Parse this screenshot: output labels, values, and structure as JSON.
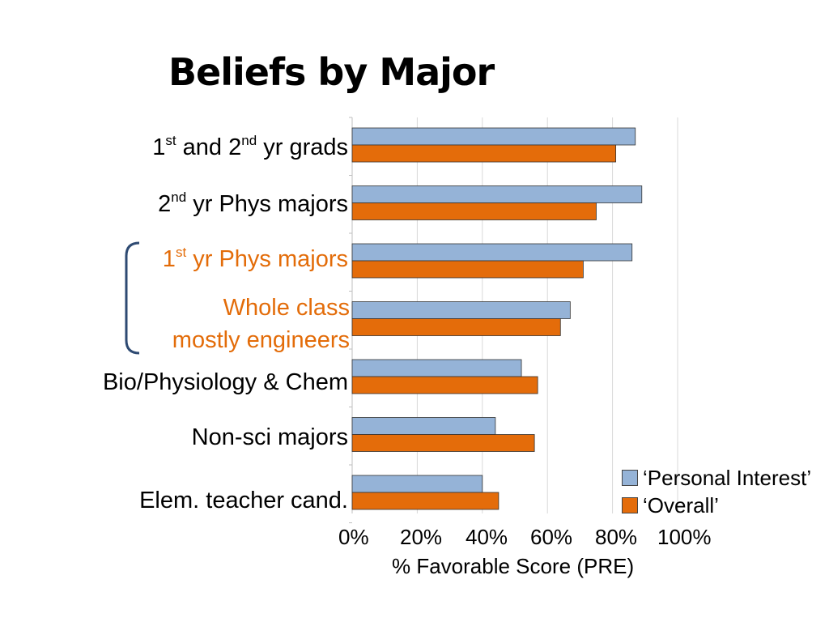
{
  "title": "Beliefs by Major",
  "colors": {
    "personal": "#95B3D7",
    "overall": "#E46C0A",
    "highlight": "#E36C09",
    "bracket": "#2E4A72",
    "grid": "#D9D9D9"
  },
  "annotation": [
    "Whole class",
    "mostly engineers"
  ],
  "chart_data": {
    "type": "bar",
    "orientation": "horizontal",
    "title": "Beliefs by Major",
    "xlabel": "% Favorable Score (PRE)",
    "ylabel": "",
    "xlim": [
      0,
      100
    ],
    "x_ticks": [
      "0%",
      "20%",
      "40%",
      "60%",
      "80%",
      "100%"
    ],
    "grid": true,
    "legend_position": "bottom-right",
    "categories": [
      {
        "parts": [
          "1",
          "st",
          " and 2",
          "nd",
          " yr grads"
        ],
        "highlight": false
      },
      {
        "parts": [
          "2",
          "nd",
          " yr Phys majors"
        ],
        "highlight": false
      },
      {
        "parts": [
          "1",
          "st",
          " yr Phys majors"
        ],
        "highlight": true
      },
      {
        "parts": [],
        "highlight": false
      },
      {
        "parts": [
          "Bio/Physiology & Chem"
        ],
        "highlight": false
      },
      {
        "parts": [
          "Non-sci majors"
        ],
        "highlight": false
      },
      {
        "parts": [
          "Elem. teacher cand."
        ],
        "highlight": false
      }
    ],
    "series": [
      {
        "name": "‘Personal Interest’",
        "values": [
          87,
          89,
          86,
          67,
          52,
          44,
          40
        ]
      },
      {
        "name": "‘Overall’",
        "values": [
          81,
          75,
          71,
          64,
          57,
          56,
          45
        ]
      }
    ]
  }
}
